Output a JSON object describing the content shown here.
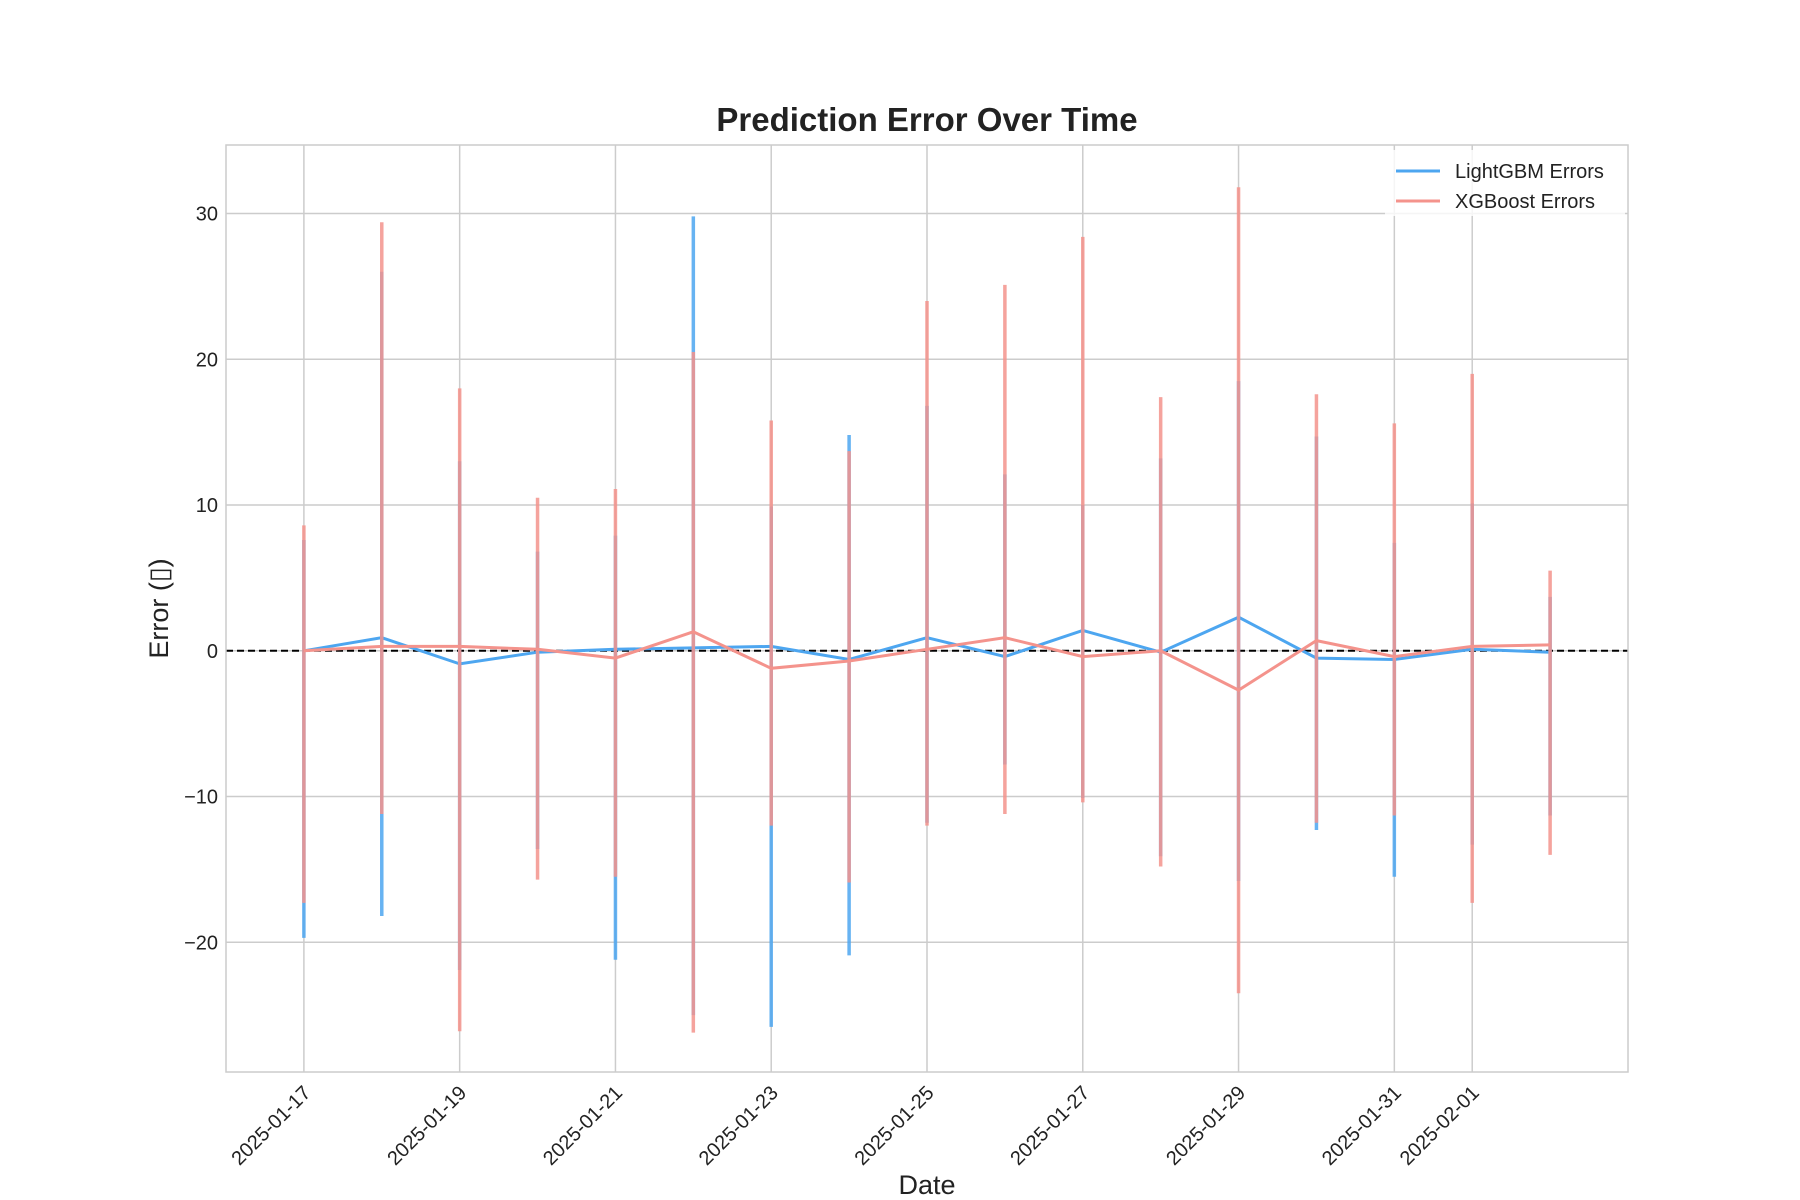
{
  "chart_data": {
    "type": "line",
    "title": "Prediction Error Over Time",
    "xlabel": "Date",
    "ylabel": "Error (▯)",
    "ylim": [
      -28.9,
      34.7
    ],
    "xlim": [
      "2025-01-16",
      "2025-02-03"
    ],
    "grid": true,
    "legend_position": "top-right",
    "x_tick_labels": [
      "2025-01-17",
      "2025-01-19",
      "2025-01-21",
      "2025-01-23",
      "2025-01-25",
      "2025-01-27",
      "2025-01-29",
      "2025-01-31",
      "2025-02-01"
    ],
    "y_tick_labels": [
      "−20",
      "−10",
      "0",
      "10",
      "20",
      "30"
    ],
    "zero_line": {
      "value": 0,
      "style": "dashed",
      "color": "#000000"
    },
    "dates": [
      "2025-01-17",
      "2025-01-18",
      "2025-01-19",
      "2025-01-20",
      "2025-01-21",
      "2025-01-22",
      "2025-01-23",
      "2025-01-24",
      "2025-01-25",
      "2025-01-26",
      "2025-01-27",
      "2025-01-28",
      "2025-01-29",
      "2025-01-30",
      "2025-01-31",
      "2025-02-01",
      "2025-02-02"
    ],
    "series": [
      {
        "name": "LightGBM Errors",
        "color": "#4da6f0",
        "values": [
          0.0,
          0.9,
          -0.9,
          -0.1,
          0.1,
          0.2,
          0.3,
          -0.6,
          0.9,
          -0.4,
          1.4,
          -0.1,
          2.3,
          -0.5,
          -0.6,
          0.1,
          -0.1
        ],
        "error_low": [
          -19.7,
          -18.2,
          -21.9,
          -13.6,
          -21.2,
          -25.0,
          -25.8,
          -20.9,
          -11.8,
          -7.8,
          -10.1,
          -14.1,
          -15.8,
          -12.3,
          -15.5,
          -13.3,
          -11.3
        ],
        "error_high": [
          7.6,
          26.0,
          13.0,
          6.8,
          7.9,
          29.8,
          9.9,
          14.8,
          16.8,
          12.1,
          10.0,
          13.2,
          18.5,
          14.7,
          7.4,
          10.1,
          3.7
        ]
      },
      {
        "name": "XGBoost Errors",
        "color": "#f4938c",
        "values": [
          0.0,
          0.3,
          0.3,
          0.1,
          -0.5,
          1.3,
          -1.2,
          -0.7,
          0.1,
          0.9,
          -0.4,
          0.0,
          -2.7,
          0.7,
          -0.4,
          0.3,
          0.4
        ],
        "error_low": [
          -17.3,
          -11.2,
          -26.1,
          -15.7,
          -15.5,
          -26.2,
          -12.0,
          -15.9,
          -12.0,
          -11.2,
          -10.4,
          -14.8,
          -23.5,
          -11.8,
          -11.3,
          -17.3,
          -14.0
        ],
        "error_high": [
          8.6,
          29.4,
          18.0,
          10.5,
          11.1,
          20.5,
          15.8,
          13.7,
          24.0,
          25.1,
          28.4,
          17.4,
          31.8,
          17.6,
          15.6,
          19.0,
          5.5
        ]
      }
    ]
  }
}
